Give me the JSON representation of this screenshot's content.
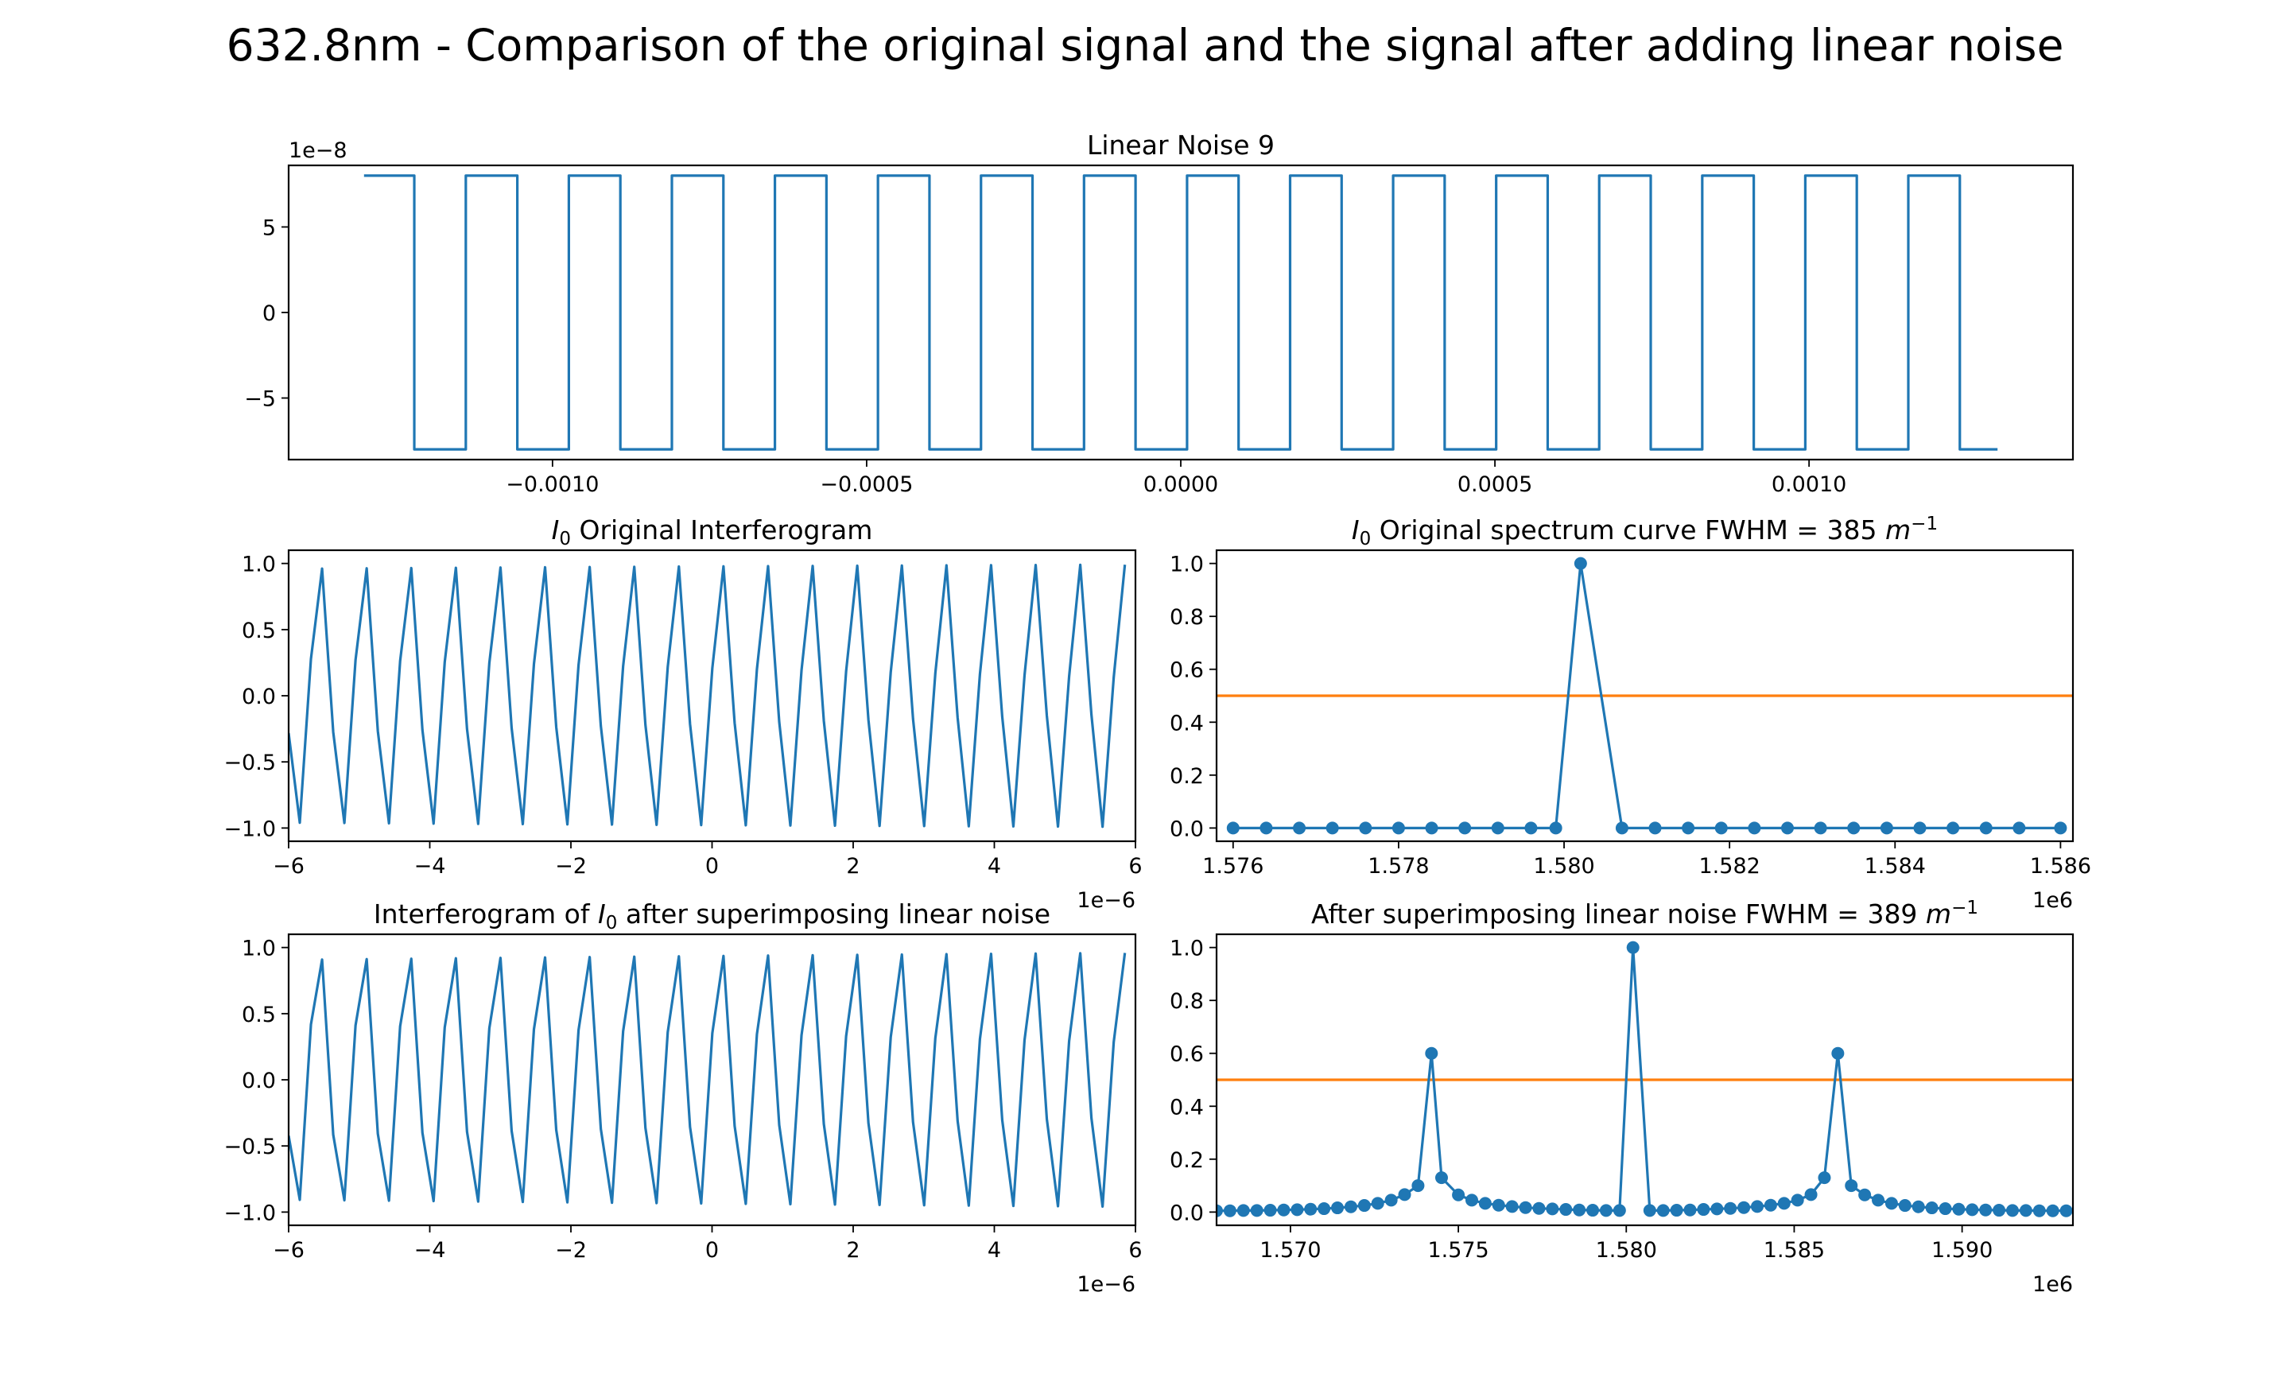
{
  "figure": {
    "title": "632.8nm - Comparison of the original signal and the signal after adding linear noise"
  },
  "colors": {
    "series_blue": "#1f77b4",
    "half_max_orange": "#ff7f0e"
  },
  "chart_data": [
    {
      "id": "noise",
      "type": "line",
      "title": "Linear Noise 9",
      "title_parts": [
        {
          "t": "Linear Noise 9"
        }
      ],
      "xlim": [
        -0.00142,
        0.00142
      ],
      "ylim": [
        -8.6,
        8.6
      ],
      "xticks": [
        -0.001,
        -0.0005,
        0.0,
        0.0005,
        0.001
      ],
      "xtick_labels": [
        "−0.0010",
        "−0.0005",
        "0.0000",
        "0.0005",
        "0.0010"
      ],
      "yticks": [
        5,
        0,
        -5
      ],
      "ytick_labels": [
        "5",
        "0",
        "−5"
      ],
      "y_offset_text": "1e−8",
      "x_offset_text": "",
      "series": [
        {
          "kind": "square_wave",
          "x_start": -0.0013,
          "x_end": 0.0013,
          "first_high_x": -0.00122,
          "step": 0.000164,
          "high_width": 8.2e-05,
          "high_count": 16,
          "high": 8,
          "low": -8
        }
      ]
    },
    {
      "id": "orig_interf",
      "type": "line",
      "title": "I0 Original Interferogram",
      "title_parts": [
        {
          "t": "I",
          "i": true
        },
        {
          "t": "0",
          "sub": true
        },
        {
          "t": " Original Interferogram"
        }
      ],
      "xlim": [
        -6,
        6
      ],
      "ylim": [
        -1.1,
        1.1
      ],
      "xticks": [
        -6,
        -4,
        -2,
        0,
        2,
        4,
        6
      ],
      "xtick_labels": [
        "−6",
        "−4",
        "−2",
        "0",
        "2",
        "4",
        "6"
      ],
      "yticks": [
        1.0,
        0.5,
        0.0,
        -0.5,
        -1.0
      ],
      "ytick_labels": [
        "1.0",
        "0.5",
        "0.0",
        "−0.5",
        "−1.0"
      ],
      "x_offset_text": "1e−6",
      "y_offset_text": "",
      "series": [
        {
          "kind": "sampled_cos",
          "x_start": -6,
          "x_end": 6,
          "sample_step": 0.158,
          "wavelength": 0.6328,
          "phase": -1.4
        }
      ]
    },
    {
      "id": "orig_spec",
      "type": "line",
      "title": "I0 Original spectrum curve FWHM = 385 m^-1",
      "title_parts": [
        {
          "t": "I",
          "i": true
        },
        {
          "t": "0",
          "sub": true
        },
        {
          "t": " Original spectrum curve FWHM = 385 "
        },
        {
          "t": "m",
          "i": true
        },
        {
          "t": "−1",
          "sup": true
        }
      ],
      "xlim": [
        1.5758,
        1.58615
      ],
      "ylim": [
        -0.05,
        1.05
      ],
      "xticks": [
        1.576,
        1.578,
        1.58,
        1.582,
        1.584,
        1.586
      ],
      "xtick_labels": [
        "1.576",
        "1.578",
        "1.580",
        "1.582",
        "1.584",
        "1.586"
      ],
      "yticks": [
        1.0,
        0.8,
        0.6,
        0.4,
        0.2,
        0.0
      ],
      "ytick_labels": [
        "1.0",
        "0.8",
        "0.6",
        "0.4",
        "0.2",
        "0.0"
      ],
      "x_offset_text": "1e6",
      "y_offset_text": "",
      "hline": 0.5,
      "series": [
        {
          "kind": "points",
          "x": [
            1.576,
            1.5764,
            1.5768,
            1.5772,
            1.5776,
            1.578,
            1.5784,
            1.5788,
            1.5792,
            1.5796,
            1.5799,
            1.5802,
            1.5807,
            1.5811,
            1.5815,
            1.5819,
            1.5823,
            1.5827,
            1.5831,
            1.5835,
            1.5839,
            1.5843,
            1.5847,
            1.5851,
            1.5855,
            1.586
          ],
          "y": [
            0,
            0,
            0,
            0,
            0,
            0,
            0,
            0,
            0,
            0,
            0,
            1.0,
            0,
            0,
            0,
            0,
            0,
            0,
            0,
            0,
            0,
            0,
            0,
            0,
            0,
            0
          ]
        }
      ]
    },
    {
      "id": "noisy_interf",
      "type": "line",
      "title": "Interferogram of I0 after superimposing linear noise",
      "title_parts": [
        {
          "t": "Interferogram of "
        },
        {
          "t": "I",
          "i": true
        },
        {
          "t": "0",
          "sub": true
        },
        {
          "t": " after superimposing linear noise"
        }
      ],
      "xlim": [
        -6,
        6
      ],
      "ylim": [
        -1.1,
        1.1
      ],
      "xticks": [
        -6,
        -4,
        -2,
        0,
        2,
        4,
        6
      ],
      "xtick_labels": [
        "−6",
        "−4",
        "−2",
        "0",
        "2",
        "4",
        "6"
      ],
      "yticks": [
        1.0,
        0.5,
        0.0,
        -0.5,
        -1.0
      ],
      "ytick_labels": [
        "1.0",
        "0.5",
        "0.0",
        "−0.5",
        "−1.0"
      ],
      "x_offset_text": "1e−6",
      "y_offset_text": "",
      "series": [
        {
          "kind": "sampled_cos",
          "x_start": -6,
          "x_end": 6,
          "sample_step": 0.158,
          "wavelength": 0.6328,
          "phase": -1.25
        }
      ]
    },
    {
      "id": "noisy_spec",
      "type": "line",
      "title": "After superimposing linear noise FWHM = 389 m^-1",
      "title_parts": [
        {
          "t": "After superimposing linear noise FWHM = 389 "
        },
        {
          "t": "m",
          "i": true
        },
        {
          "t": "−1",
          "sup": true
        }
      ],
      "xlim": [
        1.5678,
        1.5933
      ],
      "ylim": [
        -0.05,
        1.05
      ],
      "xticks": [
        1.57,
        1.575,
        1.58,
        1.585,
        1.59
      ],
      "xtick_labels": [
        "1.570",
        "1.575",
        "1.580",
        "1.585",
        "1.590"
      ],
      "yticks": [
        1.0,
        0.8,
        0.6,
        0.4,
        0.2,
        0.0
      ],
      "ytick_labels": [
        "1.0",
        "0.8",
        "0.6",
        "0.4",
        "0.2",
        "0.0"
      ],
      "x_offset_text": "1e6",
      "y_offset_text": "",
      "hline": 0.5,
      "series": [
        {
          "kind": "points",
          "x": [
            1.5678,
            1.5682,
            1.5686,
            1.569,
            1.5694,
            1.5698,
            1.5702,
            1.5706,
            1.571,
            1.5714,
            1.5718,
            1.5722,
            1.5726,
            1.573,
            1.5734,
            1.5738,
            1.5742,
            1.5745,
            1.575,
            1.5754,
            1.5758,
            1.5762,
            1.5766,
            1.577,
            1.5774,
            1.5778,
            1.5782,
            1.5786,
            1.579,
            1.5794,
            1.5798,
            1.5802,
            1.5807,
            1.5811,
            1.5815,
            1.5819,
            1.5823,
            1.5827,
            1.5831,
            1.5835,
            1.5839,
            1.5843,
            1.5847,
            1.5851,
            1.5855,
            1.5859,
            1.5863,
            1.5867,
            1.5871,
            1.5875,
            1.5879,
            1.5883,
            1.5887,
            1.5891,
            1.5895,
            1.5899,
            1.5903,
            1.5907,
            1.5911,
            1.5915,
            1.5919,
            1.5923,
            1.5927,
            1.5931
          ],
          "y": [
            0.005,
            0.005,
            0.006,
            0.006,
            0.007,
            0.008,
            0.009,
            0.011,
            0.013,
            0.016,
            0.02,
            0.025,
            0.033,
            0.045,
            0.066,
            0.1,
            0.6,
            0.13,
            0.065,
            0.045,
            0.033,
            0.026,
            0.021,
            0.017,
            0.014,
            0.012,
            0.01,
            0.008,
            0.007,
            0.006,
            0.006,
            1.0,
            0.006,
            0.006,
            0.007,
            0.008,
            0.01,
            0.012,
            0.014,
            0.017,
            0.021,
            0.026,
            0.033,
            0.045,
            0.066,
            0.13,
            0.6,
            0.1,
            0.065,
            0.045,
            0.033,
            0.025,
            0.02,
            0.016,
            0.013,
            0.011,
            0.009,
            0.008,
            0.007,
            0.006,
            0.006,
            0.005,
            0.005,
            0.005
          ]
        }
      ]
    }
  ]
}
